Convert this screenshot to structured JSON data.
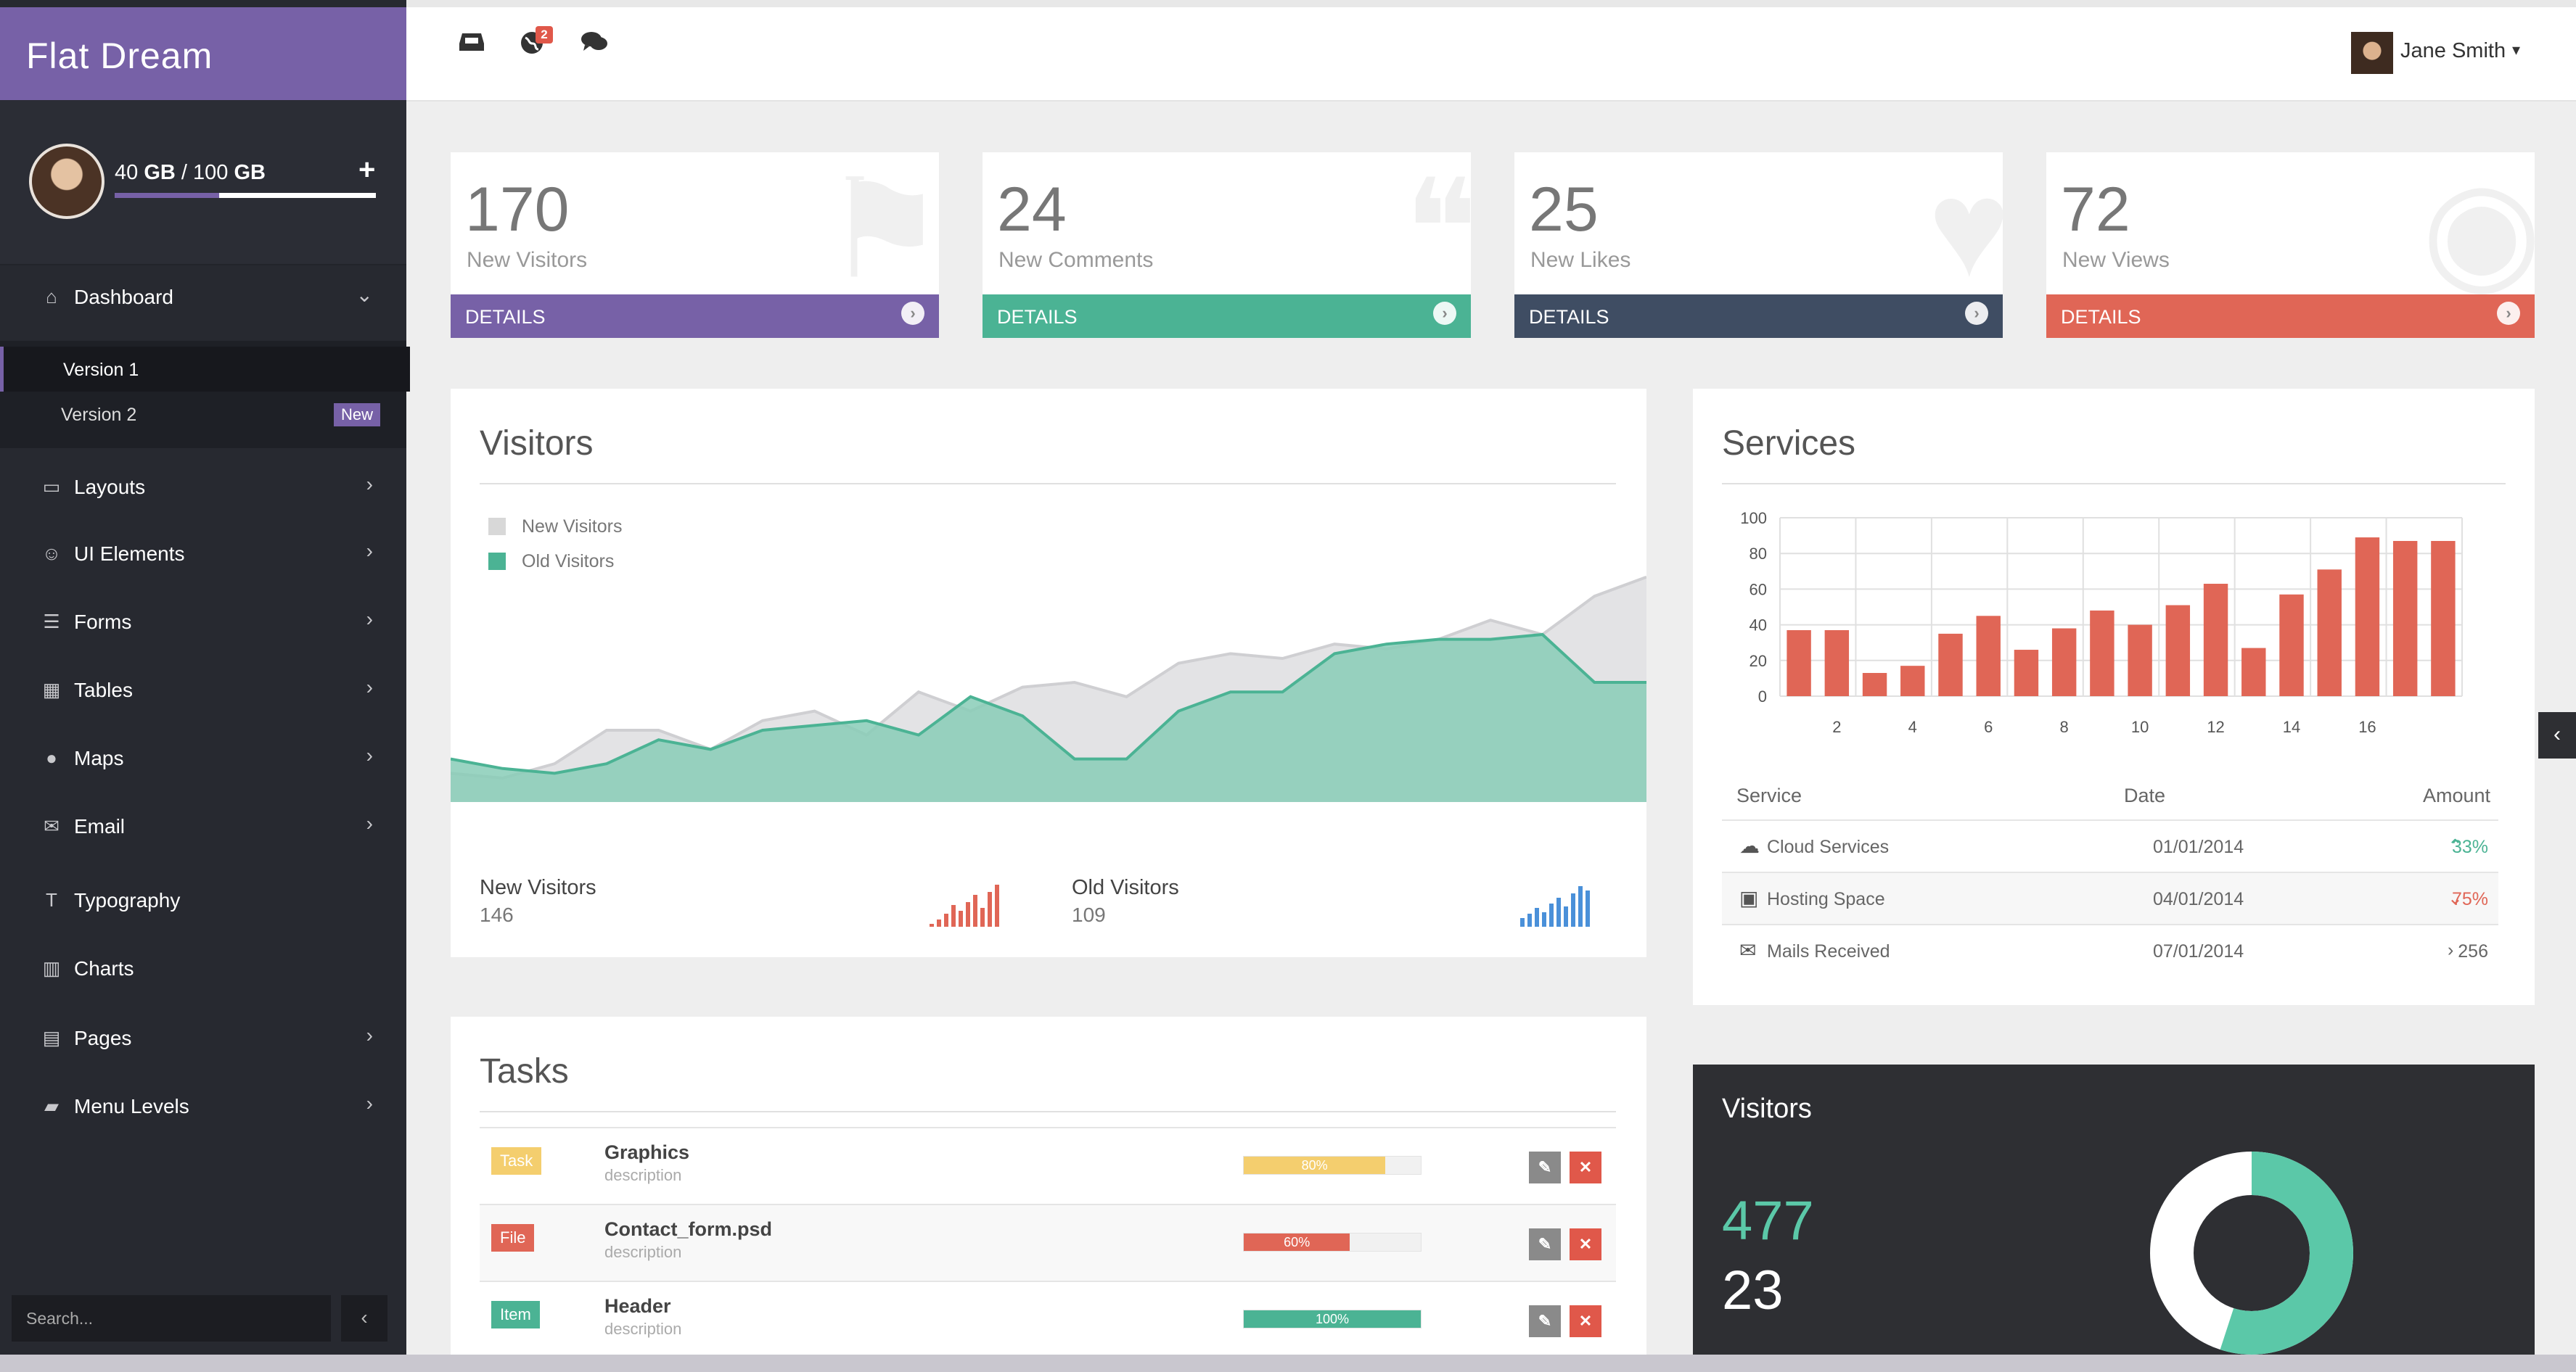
{
  "brand": "Flat Dream",
  "user_storage": {
    "used": "40",
    "total": "100",
    "unit": "GB",
    "sep": "/",
    "fraction": 0.4
  },
  "nav": [
    {
      "label": "Dashboard",
      "icon": "home-icon",
      "chevron": "⌄"
    },
    {
      "label": "Layouts",
      "icon": "desktop-icon",
      "chevron": "›"
    },
    {
      "label": "UI Elements",
      "icon": "smile-icon",
      "chevron": "›"
    },
    {
      "label": "Forms",
      "icon": "list-alt-icon",
      "chevron": "›"
    },
    {
      "label": "Tables",
      "icon": "table-icon",
      "chevron": "›"
    },
    {
      "label": "Maps",
      "icon": "map-marker-icon",
      "chevron": "›"
    },
    {
      "label": "Email",
      "icon": "envelope-icon",
      "chevron": "›"
    },
    {
      "label": "Typography",
      "icon": "text-height-icon",
      "chevron": ""
    },
    {
      "label": "Charts",
      "icon": "bar-chart-icon",
      "chevron": ""
    },
    {
      "label": "Pages",
      "icon": "file-icon",
      "chevron": "›"
    },
    {
      "label": "Menu Levels",
      "icon": "folder-open-icon",
      "chevron": "›"
    }
  ],
  "dashboard_sub": [
    {
      "label": "Version 1",
      "active": true
    },
    {
      "label": "Version 2",
      "badge": "New"
    }
  ],
  "search": {
    "placeholder": "Search..."
  },
  "header": {
    "user_name": "Jane Smith",
    "notification_count": "2"
  },
  "stats": [
    {
      "value": "170",
      "label": "New Visitors",
      "footer": "DETAILS",
      "color": "#7761a7",
      "bg_icon": "flag-icon"
    },
    {
      "value": "24",
      "label": "New Comments",
      "footer": "DETAILS",
      "color": "#4bb394",
      "bg_icon": "comments-icon"
    },
    {
      "value": "25",
      "label": "New Likes",
      "footer": "DETAILS",
      "color": "#3f4d63",
      "bg_icon": "heart-icon"
    },
    {
      "value": "72",
      "label": "New Views",
      "footer": "DETAILS",
      "color": "#e06656",
      "bg_icon": "eye-icon"
    }
  ],
  "visitors_panel": {
    "title": "Visitors",
    "legend": [
      {
        "name": "New Visitors",
        "color": "#d8d8d8"
      },
      {
        "name": "Old Visitors",
        "color": "#4bb394"
      }
    ],
    "summary": [
      {
        "label": "New Visitors",
        "value": "146",
        "spark_color": "#e06656"
      },
      {
        "label": "Old Visitors",
        "value": "109",
        "spark_color": "#4a90d9"
      }
    ]
  },
  "services_panel": {
    "title": "Services",
    "table_headers": [
      "Service",
      "Date",
      "Amount"
    ],
    "rows": [
      {
        "icon": "cloud-icon",
        "service": "Cloud Services",
        "date": "01/01/2014",
        "trend": "⌃",
        "trend_icon": "chevron-up-icon",
        "amount": "33%",
        "color": "#4bb394"
      },
      {
        "icon": "inbox-icon",
        "service": "Hosting Space",
        "date": "04/01/2014",
        "trend": "⌄",
        "trend_icon": "chevron-down-icon",
        "amount": "75%",
        "color": "#e06656"
      },
      {
        "icon": "envelope-icon",
        "service": "Mails Received",
        "date": "07/01/2014",
        "trend": "›",
        "trend_icon": "chevron-right-icon",
        "amount": "256",
        "color": "#666666"
      }
    ]
  },
  "tasks_panel": {
    "title": "Tasks",
    "rows": [
      {
        "tag": "Task",
        "tag_color": "#f4ce6e",
        "name": "Graphics",
        "desc": "description",
        "progress": "80%",
        "pct": 0.8,
        "bar_color": "#f4ce6e"
      },
      {
        "tag": "File",
        "tag_color": "#e06656",
        "name": "Contact_form.psd",
        "desc": "description",
        "progress": "60%",
        "pct": 0.6,
        "bar_color": "#e06656"
      },
      {
        "tag": "Item",
        "tag_color": "#4bb394",
        "name": "Header",
        "desc": "description",
        "progress": "100%",
        "pct": 1.0,
        "bar_color": "#4bb394"
      }
    ]
  },
  "dark_panel": {
    "title": "Visitors",
    "value1": "477",
    "value2": "23",
    "donut_fraction": 0.55
  },
  "chart_data": [
    {
      "type": "area",
      "series": [
        {
          "name": "New Visitors",
          "values": [
            12,
            10,
            16,
            30,
            30,
            22,
            34,
            38,
            28,
            46,
            38,
            48,
            50,
            44,
            58,
            62,
            60,
            66,
            64,
            68,
            76,
            70,
            86,
            94
          ]
        },
        {
          "name": "Old Visitors",
          "values": [
            18,
            14,
            12,
            16,
            26,
            22,
            30,
            32,
            34,
            28,
            44,
            36,
            18,
            18,
            38,
            46,
            46,
            62,
            66,
            68,
            68,
            70,
            50,
            50
          ]
        }
      ],
      "ylim": [
        0,
        100
      ]
    },
    {
      "type": "bar",
      "x": [
        1,
        2,
        3,
        4,
        5,
        6,
        7,
        8,
        9,
        10,
        11,
        12,
        13,
        14,
        15,
        16,
        17,
        18
      ],
      "values": [
        37,
        37,
        13,
        17,
        35,
        45,
        26,
        38,
        48,
        40,
        51,
        63,
        27,
        57,
        71,
        89,
        87,
        87
      ],
      "yticks": [
        "0",
        "20",
        "40",
        "60",
        "80",
        "100"
      ],
      "xticks": [
        "2",
        "4",
        "6",
        "8",
        "10",
        "12",
        "14",
        "16"
      ],
      "ylim": [
        0,
        100
      ],
      "color": "#e06656"
    }
  ]
}
